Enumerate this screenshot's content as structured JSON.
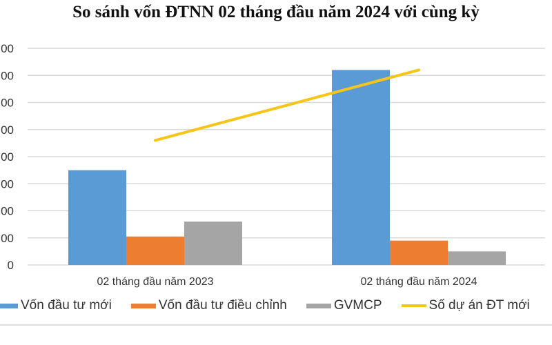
{
  "chart_data": {
    "type": "bar",
    "title": "So sánh vốn ĐTNN 02 tháng đầu năm 2024 với cùng kỳ",
    "categories": [
      "02 tháng đầu năm 2023",
      "02 tháng đầu năm 2024"
    ],
    "y_tick_labels": [
      "0",
      "00",
      "00",
      "00",
      "00",
      "00",
      "00",
      "00",
      "00"
    ],
    "ylim": [
      0,
      8
    ],
    "grid": true,
    "legend_position": "bottom",
    "series": [
      {
        "name": "Vốn đầu tư mới",
        "kind": "bar",
        "color": "#5b9bd5",
        "values": [
          3.5,
          7.2
        ]
      },
      {
        "name": "Vốn đầu tư điều chỉnh",
        "kind": "bar",
        "color": "#ed7d31",
        "values": [
          1.05,
          0.9
        ]
      },
      {
        "name": "GVMCP",
        "kind": "bar",
        "color": "#a5a5a5",
        "values": [
          1.6,
          0.5
        ]
      },
      {
        "name": "Số dự án ĐT mới",
        "kind": "line",
        "color": "#f5c518",
        "values": [
          4.6,
          7.2
        ]
      }
    ]
  }
}
